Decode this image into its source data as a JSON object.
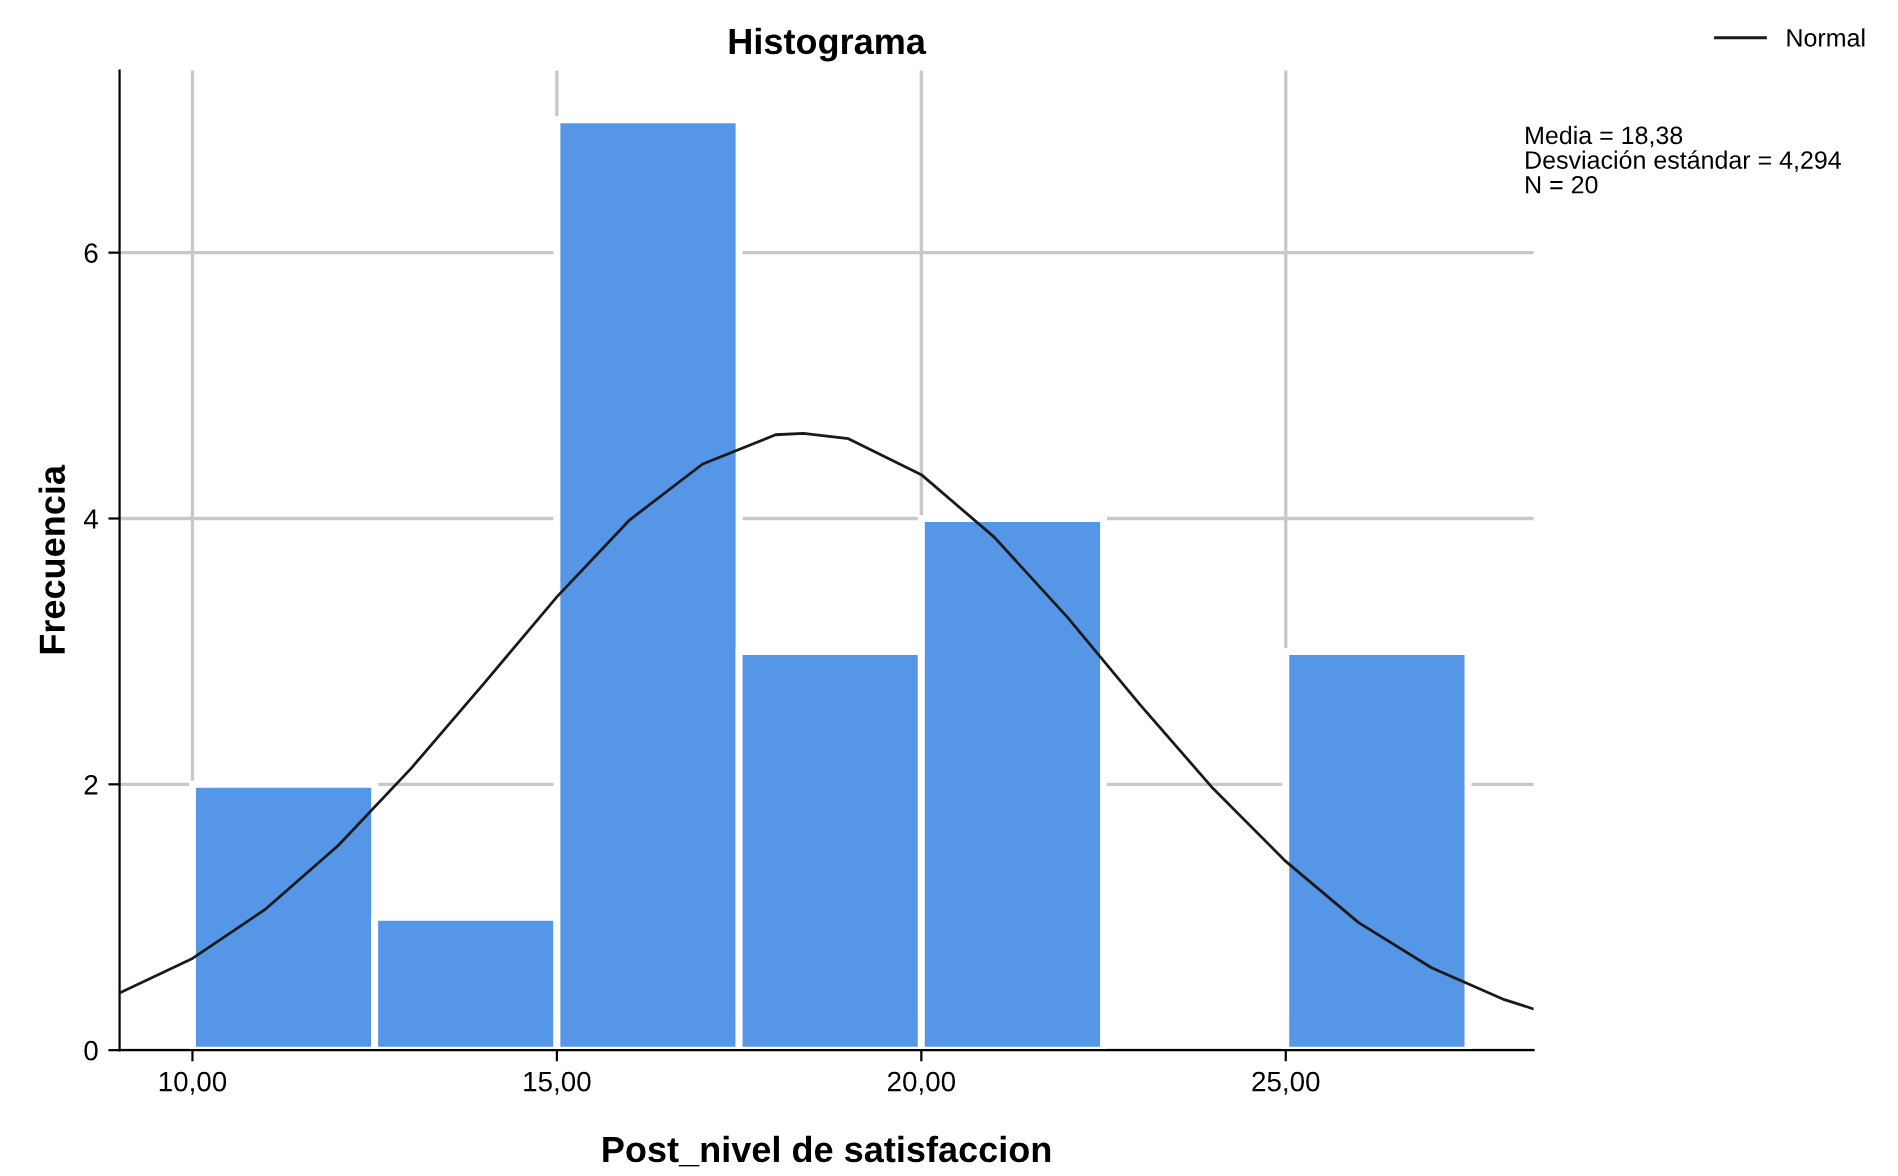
{
  "chart_data": {
    "type": "histogram",
    "title": "Histograma",
    "xlabel": "Post_nivel de satisfaccion",
    "ylabel": "Frecuencia",
    "bins": [
      10,
      12.5,
      15,
      17.5,
      20,
      22.5,
      25,
      27.5
    ],
    "values": [
      2,
      1,
      7,
      3,
      4,
      0,
      3
    ],
    "color": "#5596e6",
    "series": [
      {
        "type": "line",
        "name": "Normal",
        "color": "#1a1a1a",
        "x": [
          9.0,
          10,
          11,
          12,
          13,
          14,
          15,
          16,
          17,
          18,
          18.38,
          19,
          20,
          21,
          22,
          23,
          24,
          25,
          26,
          27,
          28,
          28.4
        ],
        "values": [
          0.43,
          0.69,
          1.06,
          1.54,
          2.12,
          2.76,
          3.41,
          3.99,
          4.41,
          4.63,
          4.64,
          4.6,
          4.33,
          3.86,
          3.26,
          2.6,
          1.97,
          1.42,
          0.96,
          0.62,
          0.38,
          0.31
        ]
      }
    ],
    "xlim": [
      9.0,
      28.4
    ],
    "ylim": [
      0,
      7.37
    ],
    "xticks": [
      {
        "value": 10,
        "label": "10,00"
      },
      {
        "value": 15,
        "label": "15,00"
      },
      {
        "value": 20,
        "label": "20,00"
      },
      {
        "value": 25,
        "label": "25,00"
      }
    ],
    "yticks": [
      0,
      2,
      4,
      6
    ],
    "grid": true,
    "legend": "top right",
    "marker": "none",
    "line_style": "solid",
    "annotations": [
      "Media = 18,38",
      "Desviación estándar = 4,294",
      "N = 20"
    ]
  }
}
